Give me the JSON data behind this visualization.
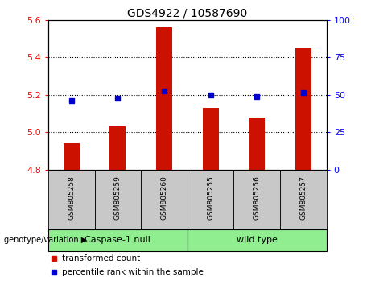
{
  "title": "GDS4922 / 10587690",
  "samples": [
    "GSM805258",
    "GSM805259",
    "GSM805260",
    "GSM805255",
    "GSM805256",
    "GSM805257"
  ],
  "group_labels": [
    "Caspase-1 null",
    "wild type"
  ],
  "bar_values": [
    4.94,
    5.03,
    5.56,
    5.13,
    5.08,
    5.45
  ],
  "dot_values": [
    5.17,
    5.18,
    5.22,
    5.2,
    5.19,
    5.21
  ],
  "bar_color": "#CC1100",
  "dot_color": "#0000CC",
  "ylim_left": [
    4.8,
    5.6
  ],
  "ylim_right": [
    0,
    100
  ],
  "yticks_left": [
    4.8,
    5.0,
    5.2,
    5.4,
    5.6
  ],
  "yticks_right": [
    0,
    25,
    50,
    75,
    100
  ],
  "bar_bottom": 4.8,
  "legend_labels": [
    "transformed count",
    "percentile rank within the sample"
  ],
  "genotype_label": "genotype/variation",
  "group1_indices": [
    0,
    1,
    2
  ],
  "group2_indices": [
    3,
    4,
    5
  ],
  "group1_color": "#90EE90",
  "group2_color": "#90EE90",
  "sample_bg_color": "#C8C8C8",
  "fig_width": 4.61,
  "fig_height": 3.54,
  "bar_width": 0.35
}
